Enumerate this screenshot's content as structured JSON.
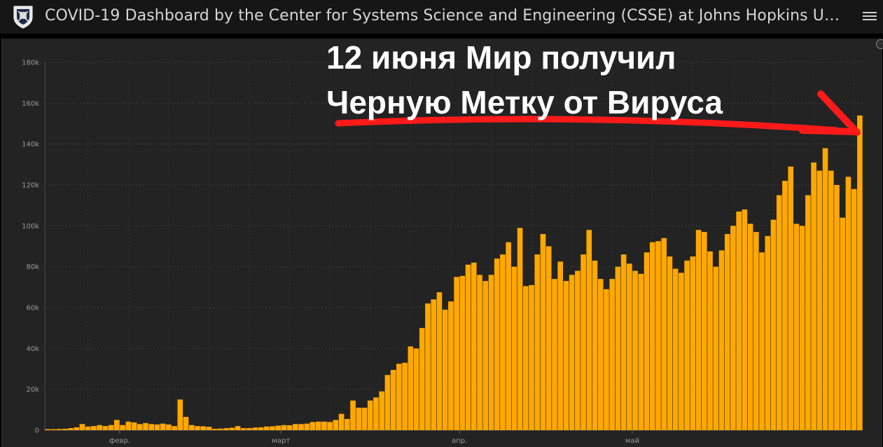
{
  "header": {
    "title": "COVID-19 Dashboard by the Center for Systems Science and Engineering (CSSE) at Johns Hopkins U…",
    "logo_icon": "university-shield-icon",
    "menu_icon": "hamburger-menu-icon"
  },
  "annotation": {
    "line1": "12 июня Мир получил",
    "line2": "Черную Метку от Вируса",
    "color": "#ff1a1a"
  },
  "colors": {
    "bar": "#ffa800",
    "background": "#232323",
    "header": "#161616"
  },
  "chart_data": {
    "type": "bar",
    "ylim": [
      0,
      180000
    ],
    "yticks": [
      0,
      20000,
      40000,
      60000,
      80000,
      100000,
      120000,
      140000,
      160000,
      180000
    ],
    "ytick_labels": [
      "0",
      "20k",
      "40k",
      "60k",
      "80k",
      "100k",
      "120k",
      "140k",
      "160k",
      "180k"
    ],
    "xtick_labels": [
      {
        "label": "февр.",
        "index": 13
      },
      {
        "label": "март",
        "index": 41
      },
      {
        "label": "апр.",
        "index": 72
      },
      {
        "label": "май",
        "index": 102
      }
    ],
    "grid": true,
    "values": [
      500,
      500,
      600,
      700,
      1000,
      1400,
      3000,
      1800,
      2000,
      2500,
      2000,
      2500,
      5000,
      2500,
      4200,
      3800,
      3000,
      3500,
      3000,
      2800,
      3200,
      2800,
      2000,
      15000,
      6500,
      2500,
      2000,
      1900,
      1700,
      700,
      800,
      1000,
      1200,
      2000,
      1000,
      1000,
      1300,
      1400,
      1800,
      1900,
      2200,
      2500,
      2400,
      3000,
      3000,
      3200,
      4000,
      4200,
      4200,
      4000,
      5000,
      8000,
      5500,
      14500,
      11000,
      11000,
      14500,
      16000,
      19000,
      27000,
      29500,
      32500,
      33000,
      41000,
      40000,
      50000,
      62000,
      64000,
      67500,
      59000,
      63000,
      75000,
      75500,
      81000,
      82000,
      76000,
      73000,
      76000,
      84000,
      86000,
      92000,
      80000,
      99000,
      70500,
      71000,
      86000,
      96000,
      90000,
      74000,
      82500,
      73000,
      76000,
      78000,
      86000,
      98000,
      83000,
      74000,
      69000,
      74000,
      80000,
      86000,
      81500,
      78000,
      76500,
      87000,
      92000,
      92500,
      94000,
      85000,
      79000,
      77000,
      83000,
      85000,
      98000,
      97000,
      87500,
      80000,
      88000,
      96000,
      100000,
      107000,
      108000,
      101000,
      97000,
      87000,
      95000,
      103000,
      115000,
      122000,
      129000,
      101000,
      100000,
      115000,
      131000,
      127000,
      138000,
      127000,
      120000,
      104000,
      124000,
      118000,
      154000
    ]
  }
}
